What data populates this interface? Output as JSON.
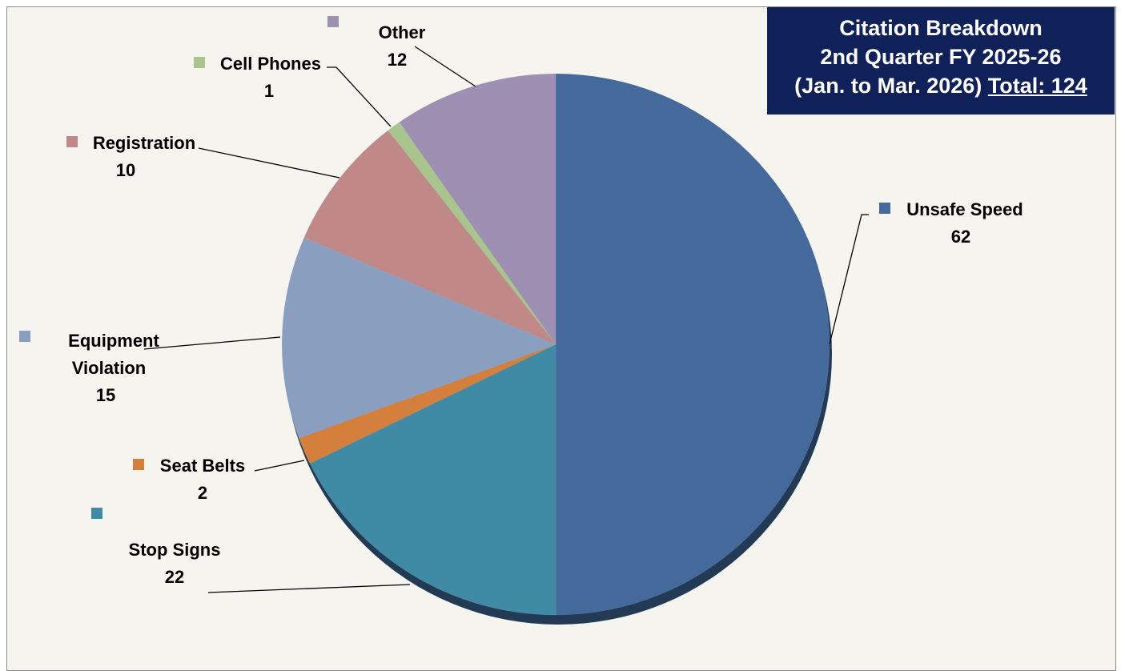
{
  "title": {
    "line1": "Citation Breakdown",
    "line2": "2nd Quarter FY 2025-26",
    "line3": "(Jan. to Mar. 2026)",
    "total": "Total: 124"
  },
  "chart_data": {
    "type": "pie",
    "title": "Citation Breakdown 2nd Quarter FY 2025-26 (Jan. to Mar. 2026) Total: 124",
    "start": "12 o'clock, clockwise",
    "legend": "labels beside slices",
    "slices": [
      {
        "label": "Unsafe Speed",
        "value": 62,
        "color": "#44699b"
      },
      {
        "label": "Stop Signs",
        "value": 22,
        "color": "#3f8ba5"
      },
      {
        "label": "Seat Belts",
        "value": 2,
        "color": "#d4803c"
      },
      {
        "label": "Equipment Violation",
        "label_lines": [
          "Equipment",
          "Violation"
        ],
        "value": 15,
        "color": "#8a9ebf"
      },
      {
        "label": "Registration",
        "value": 10,
        "color": "#c08987"
      },
      {
        "label": "Cell Phones",
        "value": 1,
        "color": "#a9c48c"
      },
      {
        "label": "Other",
        "value": 12,
        "color": "#9e90b2"
      }
    ]
  }
}
